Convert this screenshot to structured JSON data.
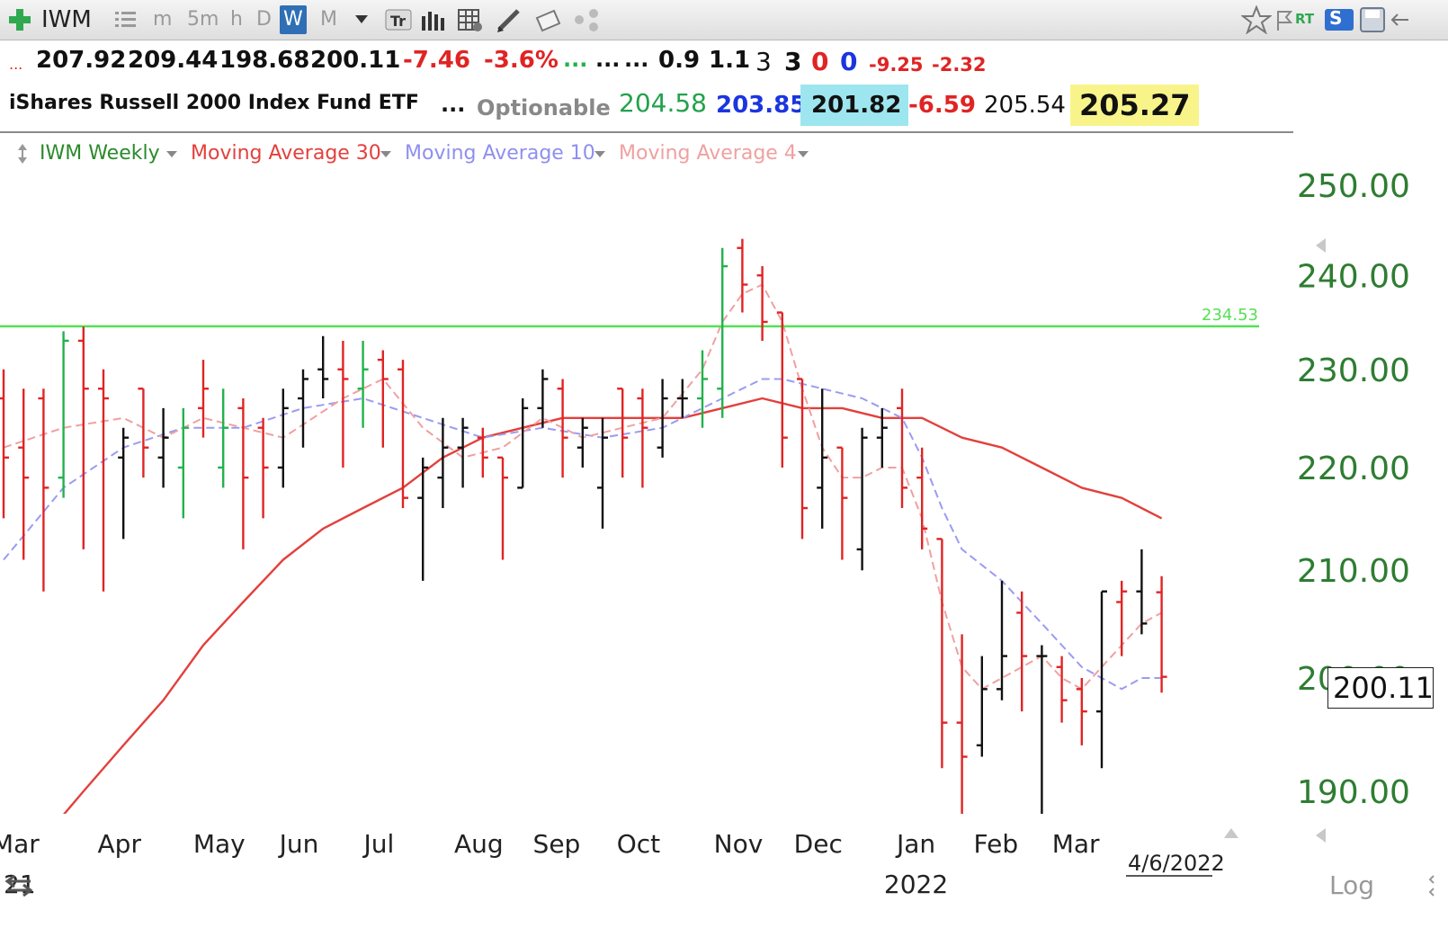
{
  "toolbar": {
    "symbol": "IWM",
    "timeframes": [
      "m",
      "5m",
      "h",
      "D",
      "W",
      "M"
    ],
    "active_timeframe": "W",
    "rt_label": "RT",
    "s_label": "S"
  },
  "quote_line": {
    "open": "207.92",
    "high": "209.44",
    "low": "198.68",
    "close": "200.11",
    "change": "-7.46",
    "change_pct": "-3.6%",
    "ellipsis_green": "...",
    "ellipsis_1": "...",
    "ellipsis_2": "...",
    "v1": "0.9",
    "v2": "1.1",
    "n1": "3",
    "n2": "3",
    "n3": "0",
    "n4": "0",
    "v3": "-9.25",
    "v4": "-2.32",
    "red_dots": "..."
  },
  "name_line": {
    "name": "iShares Russell 2000 Index Fund ETF",
    "ellipsis": "...",
    "optionable": "Optionable",
    "p1": "204.58",
    "p2": "203.85",
    "p3": "201.82",
    "p4": "-6.59",
    "p5": "205.54",
    "p6": "205.27"
  },
  "legend": {
    "series_main": "IWM Weekly",
    "ma30": "Moving Average 30",
    "ma10": "Moving Average 10",
    "ma4": "Moving Average 4"
  },
  "colors": {
    "up": "#22b24c",
    "down": "#e02424",
    "neutral": "#111111",
    "ma30": "#e3403c",
    "ma10": "#9b9bf2",
    "ma4": "#f0a0a0",
    "hline": "#55e055",
    "axis_green": "#2e7d32"
  },
  "chart_data": {
    "type": "ohlc",
    "scale": "log",
    "ylim": [
      186,
      256
    ],
    "y_ticks": [
      "250.00",
      "240.00",
      "230.00",
      "220.00",
      "210.00",
      "200.00",
      "190.00"
    ],
    "last_price_label": "200.11",
    "horizontal_line": {
      "value": 234.53,
      "label": "234.53"
    },
    "x_labels": [
      "Mar",
      "Apr",
      "May",
      "Jun",
      "Jul",
      "Aug",
      "Sep",
      "Oct",
      "Nov",
      "Dec",
      "Jan",
      "Feb",
      "Mar"
    ],
    "year_label": "2022",
    "left_year_fragment": "21",
    "date_label": "4/6/2022",
    "log_label": "Log",
    "bars": [
      {
        "d": "2021-02-26",
        "o": 227,
        "h": 230,
        "l": 215,
        "c": 221,
        "col": "down"
      },
      {
        "d": "2021-03-05",
        "o": 222,
        "h": 228,
        "l": 211,
        "c": 219,
        "col": "down"
      },
      {
        "d": "2021-03-12",
        "o": 227,
        "h": 228,
        "l": 208,
        "c": 218,
        "col": "down"
      },
      {
        "d": "2021-03-19",
        "o": 219,
        "h": 234,
        "l": 217,
        "c": 233,
        "col": "up"
      },
      {
        "d": "2021-03-26",
        "o": 233,
        "h": 234.5,
        "l": 212,
        "c": 228,
        "col": "down"
      },
      {
        "d": "2021-04-02",
        "o": 228,
        "h": 230,
        "l": 208,
        "c": 227,
        "col": "down"
      },
      {
        "d": "2021-04-09",
        "o": 221,
        "h": 224,
        "l": 213,
        "c": 223,
        "col": "neutral"
      },
      {
        "d": "2021-04-16",
        "o": 228,
        "h": 228,
        "l": 219,
        "c": 222,
        "col": "down"
      },
      {
        "d": "2021-04-23",
        "o": 221,
        "h": 226,
        "l": 218,
        "c": 223,
        "col": "neutral"
      },
      {
        "d": "2021-04-30",
        "o": 220,
        "h": 226,
        "l": 215,
        "c": 224,
        "col": "up"
      },
      {
        "d": "2021-05-07",
        "o": 226,
        "h": 231,
        "l": 223,
        "c": 228,
        "col": "down"
      },
      {
        "d": "2021-05-14",
        "o": 220,
        "h": 228,
        "l": 218,
        "c": 224,
        "col": "up"
      },
      {
        "d": "2021-05-21",
        "o": 226,
        "h": 227,
        "l": 212,
        "c": 219,
        "col": "down"
      },
      {
        "d": "2021-05-28",
        "o": 224,
        "h": 225,
        "l": 215,
        "c": 220,
        "col": "down"
      },
      {
        "d": "2021-06-04",
        "o": 220,
        "h": 228,
        "l": 218,
        "c": 226,
        "col": "neutral"
      },
      {
        "d": "2021-06-11",
        "o": 227,
        "h": 230,
        "l": 222,
        "c": 229,
        "col": "neutral"
      },
      {
        "d": "2021-06-18",
        "o": 230,
        "h": 233.5,
        "l": 227,
        "c": 229,
        "col": "neutral"
      },
      {
        "d": "2021-06-25",
        "o": 230,
        "h": 233,
        "l": 220,
        "c": 229,
        "col": "down"
      },
      {
        "d": "2021-07-02",
        "o": 228,
        "h": 233,
        "l": 224,
        "c": 230,
        "col": "up"
      },
      {
        "d": "2021-07-09",
        "o": 231,
        "h": 232,
        "l": 222,
        "c": 229,
        "col": "down"
      },
      {
        "d": "2021-07-16",
        "o": 230,
        "h": 231,
        "l": 216,
        "c": 217,
        "col": "down"
      },
      {
        "d": "2021-07-23",
        "o": 217,
        "h": 221,
        "l": 209,
        "c": 220,
        "col": "neutral"
      },
      {
        "d": "2021-07-30",
        "o": 219,
        "h": 225,
        "l": 216,
        "c": 222,
        "col": "neutral"
      },
      {
        "d": "2021-08-06",
        "o": 222,
        "h": 225,
        "l": 218,
        "c": 224,
        "col": "neutral"
      },
      {
        "d": "2021-08-13",
        "o": 223,
        "h": 224,
        "l": 219,
        "c": 221,
        "col": "down"
      },
      {
        "d": "2021-08-20",
        "o": 221,
        "h": 221,
        "l": 211,
        "c": 219,
        "col": "down"
      },
      {
        "d": "2021-08-27",
        "o": 218,
        "h": 227,
        "l": 218,
        "c": 226,
        "col": "neutral"
      },
      {
        "d": "2021-09-03",
        "o": 226,
        "h": 230,
        "l": 224,
        "c": 229,
        "col": "neutral"
      },
      {
        "d": "2021-09-10",
        "o": 228,
        "h": 229,
        "l": 219,
        "c": 223,
        "col": "down"
      },
      {
        "d": "2021-09-17",
        "o": 222,
        "h": 225,
        "l": 220,
        "c": 224,
        "col": "neutral"
      },
      {
        "d": "2021-09-24",
        "o": 218,
        "h": 225,
        "l": 214,
        "c": 223,
        "col": "neutral"
      },
      {
        "d": "2021-10-01",
        "o": 228,
        "h": 228,
        "l": 219,
        "c": 223,
        "col": "down"
      },
      {
        "d": "2021-10-08",
        "o": 227,
        "h": 228,
        "l": 218,
        "c": 224,
        "col": "down"
      },
      {
        "d": "2021-10-15",
        "o": 222,
        "h": 229,
        "l": 221,
        "c": 227,
        "col": "neutral"
      },
      {
        "d": "2021-10-22",
        "o": 227,
        "h": 229,
        "l": 225,
        "c": 227,
        "col": "neutral"
      },
      {
        "d": "2021-10-29",
        "o": 227,
        "h": 232,
        "l": 224,
        "c": 229,
        "col": "up"
      },
      {
        "d": "2021-11-05",
        "o": 228,
        "h": 243,
        "l": 225,
        "c": 241,
        "col": "up"
      },
      {
        "d": "2021-11-12",
        "o": 243,
        "h": 244,
        "l": 236,
        "c": 239,
        "col": "down"
      },
      {
        "d": "2021-11-19",
        "o": 240,
        "h": 241,
        "l": 233,
        "c": 235,
        "col": "down"
      },
      {
        "d": "2021-11-26",
        "o": 236,
        "h": 236,
        "l": 220,
        "c": 223,
        "col": "down"
      },
      {
        "d": "2021-12-03",
        "o": 229,
        "h": 229,
        "l": 213,
        "c": 216,
        "col": "down"
      },
      {
        "d": "2021-12-10",
        "o": 218,
        "h": 228,
        "l": 214,
        "c": 221,
        "col": "neutral"
      },
      {
        "d": "2021-12-17",
        "o": 222,
        "h": 222,
        "l": 211,
        "c": 217,
        "col": "down"
      },
      {
        "d": "2021-12-24",
        "o": 212,
        "h": 224,
        "l": 210,
        "c": 223,
        "col": "neutral"
      },
      {
        "d": "2021-12-31",
        "o": 223,
        "h": 226,
        "l": 220,
        "c": 224,
        "col": "neutral"
      },
      {
        "d": "2022-01-07",
        "o": 226,
        "h": 228,
        "l": 216,
        "c": 218,
        "col": "down"
      },
      {
        "d": "2022-01-14",
        "o": 219,
        "h": 222,
        "l": 212,
        "c": 214,
        "col": "down"
      },
      {
        "d": "2022-01-21",
        "o": 213,
        "h": 213,
        "l": 192,
        "c": 196,
        "col": "down"
      },
      {
        "d": "2022-01-28",
        "o": 196,
        "h": 204,
        "l": 188,
        "c": 193,
        "col": "down"
      },
      {
        "d": "2022-02-04",
        "o": 194,
        "h": 202,
        "l": 193,
        "c": 199,
        "col": "neutral"
      },
      {
        "d": "2022-02-11",
        "o": 199,
        "h": 209,
        "l": 198,
        "c": 202,
        "col": "neutral"
      },
      {
        "d": "2022-02-18",
        "o": 206,
        "h": 208,
        "l": 197,
        "c": 202,
        "col": "down"
      },
      {
        "d": "2022-02-25",
        "o": 202,
        "h": 203,
        "l": 188,
        "c": 202,
        "col": "neutral"
      },
      {
        "d": "2022-03-04",
        "o": 201,
        "h": 202,
        "l": 196,
        "c": 198,
        "col": "down"
      },
      {
        "d": "2022-03-11",
        "o": 199,
        "h": 200,
        "l": 194,
        "c": 197,
        "col": "down"
      },
      {
        "d": "2022-03-18",
        "o": 197,
        "h": 208,
        "l": 192,
        "c": 208,
        "col": "neutral"
      },
      {
        "d": "2022-03-25",
        "o": 207,
        "h": 209,
        "l": 202,
        "c": 208,
        "col": "down"
      },
      {
        "d": "2022-04-01",
        "o": 208,
        "h": 212,
        "l": 204,
        "c": 205,
        "col": "neutral"
      },
      {
        "d": "2022-04-08",
        "o": 207.92,
        "h": 209.44,
        "l": 198.68,
        "c": 200.11,
        "col": "down"
      }
    ],
    "ma4": {
      "name": "Moving Average 4",
      "values": [
        [
          0,
          222
        ],
        [
          3,
          224
        ],
        [
          6,
          225
        ],
        [
          8,
          223
        ],
        [
          10,
          225
        ],
        [
          12,
          224
        ],
        [
          14,
          223
        ],
        [
          17,
          227
        ],
        [
          19,
          229
        ],
        [
          21,
          224
        ],
        [
          23,
          221
        ],
        [
          25,
          222
        ],
        [
          27,
          225
        ],
        [
          29,
          223
        ],
        [
          31,
          224
        ],
        [
          33,
          225
        ],
        [
          35,
          230
        ],
        [
          36,
          235
        ],
        [
          37,
          238
        ],
        [
          38,
          239
        ],
        [
          39,
          235
        ],
        [
          40,
          228
        ],
        [
          41,
          222
        ],
        [
          42,
          219
        ],
        [
          43,
          219
        ],
        [
          44,
          220
        ],
        [
          45,
          220
        ],
        [
          46,
          215
        ],
        [
          47,
          207
        ],
        [
          48,
          201
        ],
        [
          49,
          199
        ],
        [
          50,
          200
        ],
        [
          51,
          201
        ],
        [
          52,
          202
        ],
        [
          53,
          200
        ],
        [
          54,
          199
        ],
        [
          55,
          201
        ],
        [
          56,
          203
        ],
        [
          57,
          205
        ],
        [
          58,
          206
        ]
      ]
    },
    "ma10": {
      "name": "Moving Average 10",
      "values": [
        [
          0,
          211
        ],
        [
          3,
          218
        ],
        [
          6,
          222
        ],
        [
          9,
          224
        ],
        [
          12,
          224
        ],
        [
          15,
          226
        ],
        [
          18,
          227
        ],
        [
          21,
          225
        ],
        [
          24,
          223
        ],
        [
          27,
          224
        ],
        [
          30,
          223
        ],
        [
          33,
          224
        ],
        [
          35,
          226
        ],
        [
          37,
          228
        ],
        [
          38,
          229
        ],
        [
          39,
          229
        ],
        [
          41,
          228
        ],
        [
          43,
          227
        ],
        [
          45,
          225
        ],
        [
          46,
          221
        ],
        [
          47,
          216
        ],
        [
          48,
          212
        ],
        [
          50,
          209
        ],
        [
          52,
          205
        ],
        [
          53,
          203
        ],
        [
          54,
          201
        ],
        [
          55,
          200
        ],
        [
          56,
          199
        ],
        [
          57,
          200
        ],
        [
          58,
          200
        ]
      ]
    },
    "ma30": {
      "name": "Moving Average 30",
      "values": [
        [
          2,
          186
        ],
        [
          4,
          190
        ],
        [
          6,
          194
        ],
        [
          8,
          198
        ],
        [
          10,
          203
        ],
        [
          12,
          207
        ],
        [
          14,
          211
        ],
        [
          16,
          214
        ],
        [
          18,
          216
        ],
        [
          20,
          218
        ],
        [
          22,
          221
        ],
        [
          24,
          223
        ],
        [
          26,
          224
        ],
        [
          28,
          225
        ],
        [
          30,
          225
        ],
        [
          32,
          225
        ],
        [
          34,
          225
        ],
        [
          36,
          226
        ],
        [
          38,
          227
        ],
        [
          40,
          226
        ],
        [
          42,
          226
        ],
        [
          44,
          225
        ],
        [
          46,
          225
        ],
        [
          48,
          223
        ],
        [
          50,
          222
        ],
        [
          52,
          220
        ],
        [
          54,
          218
        ],
        [
          56,
          217
        ],
        [
          58,
          215
        ]
      ]
    }
  }
}
